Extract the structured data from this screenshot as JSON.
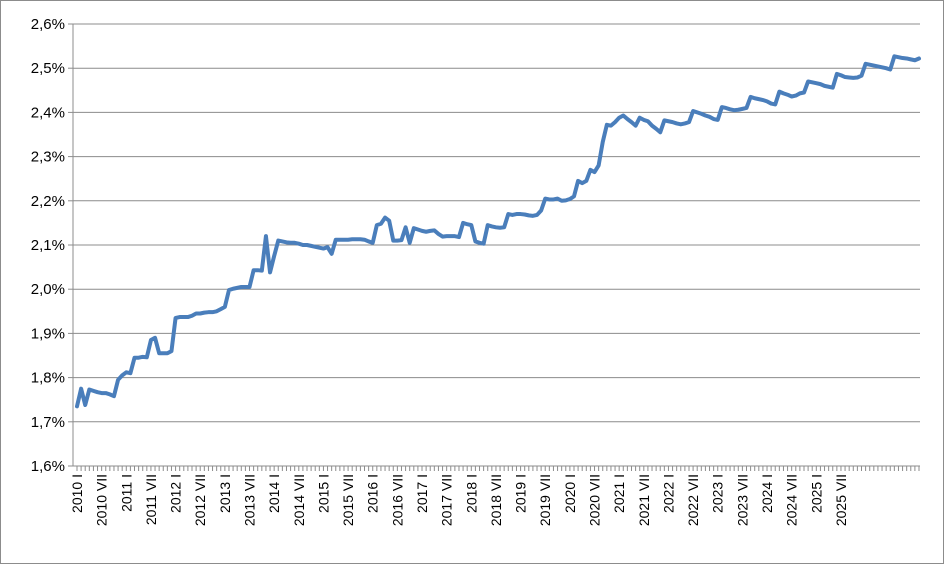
{
  "chart_data": {
    "type": "line",
    "title": "",
    "xlabel": "",
    "ylabel": "",
    "ylim": [
      1.6,
      2.6
    ],
    "yticks": [
      "1,6%",
      "1,7%",
      "1,8%",
      "1,9%",
      "2,0%",
      "2,1%",
      "2,2%",
      "2,3%",
      "2,4%",
      "2,5%",
      "2,6%"
    ],
    "xticks": [
      "2010 I",
      "2010 VII",
      "2011 I",
      "2011 VII",
      "2012 I",
      "2012 VII",
      "2013 I",
      "2013 VII",
      "2014 I",
      "2014 VII",
      "2015 I",
      "2015 VII",
      "2016 I",
      "2016 VII",
      "2017 I",
      "2017 VII",
      "2018 I",
      "2018 VII",
      "2019 I",
      "2019 VII",
      "2020 I",
      "2020 VII",
      "2021 I",
      "2021 VII",
      "2022 I",
      "2022 VII",
      "2023 I",
      "2023 VII",
      "2024 I",
      "2024 VII",
      "2025 I",
      "2025 VII"
    ],
    "grid": true,
    "legend": "none",
    "color": "#4a7ebb",
    "series": [
      {
        "values": [
          1.735,
          1.775,
          1.738,
          1.773,
          1.77,
          1.767,
          1.765,
          1.765,
          1.762,
          1.758,
          1.795,
          1.805,
          1.812,
          1.81,
          1.845,
          1.845,
          1.847,
          1.846,
          1.885,
          1.89,
          1.855,
          1.855,
          1.855,
          1.86,
          1.935,
          1.937,
          1.937,
          1.937,
          1.94,
          1.945,
          1.945,
          1.947,
          1.948,
          1.948,
          1.95,
          1.955,
          1.96,
          1.998,
          2.001,
          2.003,
          2.005,
          2.005,
          2.005,
          2.043,
          2.043,
          2.042,
          2.12,
          2.038,
          2.075,
          2.11,
          2.108,
          2.106,
          2.105,
          2.105,
          2.103,
          2.1,
          2.1,
          2.098,
          2.096,
          2.094,
          2.092,
          2.095,
          2.08,
          2.112,
          2.112,
          2.112,
          2.112,
          2.113,
          2.113,
          2.113,
          2.112,
          2.108,
          2.105,
          2.145,
          2.148,
          2.162,
          2.155,
          2.11,
          2.11,
          2.111,
          2.14,
          2.105,
          2.138,
          2.135,
          2.132,
          2.13,
          2.132,
          2.133,
          2.125,
          2.119,
          2.12,
          2.12,
          2.12,
          2.118,
          2.15,
          2.147,
          2.145,
          2.108,
          2.105,
          2.103,
          2.145,
          2.142,
          2.14,
          2.139,
          2.14,
          2.17,
          2.168,
          2.17,
          2.17,
          2.169,
          2.167,
          2.166,
          2.168,
          2.178,
          2.205,
          2.203,
          2.203,
          2.205,
          2.2,
          2.201,
          2.204,
          2.21,
          2.245,
          2.24,
          2.245,
          2.27,
          2.265,
          2.28,
          2.333,
          2.372,
          2.37,
          2.378,
          2.388,
          2.393,
          2.385,
          2.378,
          2.37,
          2.388,
          2.383,
          2.38,
          2.37,
          2.363,
          2.355,
          2.382,
          2.38,
          2.378,
          2.375,
          2.373,
          2.375,
          2.378,
          2.403,
          2.4,
          2.397,
          2.393,
          2.39,
          2.385,
          2.383,
          2.412,
          2.41,
          2.407,
          2.405,
          2.406,
          2.408,
          2.41,
          2.435,
          2.432,
          2.43,
          2.428,
          2.425,
          2.42,
          2.418,
          2.447,
          2.443,
          2.44,
          2.436,
          2.438,
          2.443,
          2.445,
          2.47,
          2.468,
          2.466,
          2.464,
          2.46,
          2.458,
          2.456,
          2.487,
          2.484,
          2.48,
          2.479,
          2.478,
          2.479,
          2.483,
          2.51,
          2.508,
          2.506,
          2.504,
          2.502,
          2.5,
          2.497,
          2.527,
          2.525,
          2.523,
          2.522,
          2.52,
          2.518,
          2.522
        ]
      }
    ]
  }
}
